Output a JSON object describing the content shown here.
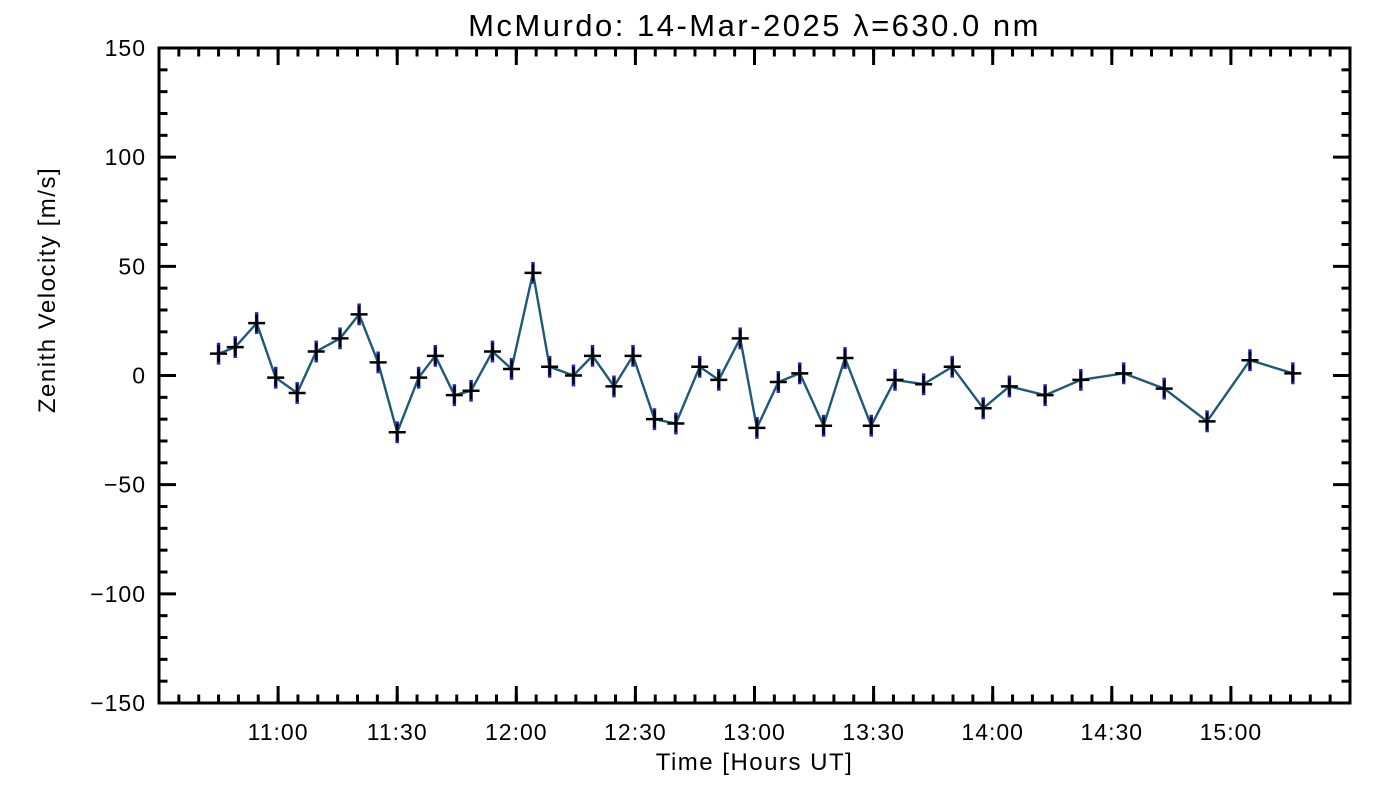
{
  "chart_data": {
    "type": "line",
    "title": "McMurdo: 14-Mar-2025 λ=630.0 nm",
    "xlabel": "Time [Hours UT]",
    "ylabel": "Zenith Velocity [m/s]",
    "xlim": [
      10.5,
      15.5
    ],
    "ylim": [
      -150,
      150
    ],
    "grid": false,
    "legend": "none",
    "marker": "plus",
    "x_ticks": [
      {
        "value": 11.0,
        "label": "11:00"
      },
      {
        "value": 11.5,
        "label": "11:30"
      },
      {
        "value": 12.0,
        "label": "12:00"
      },
      {
        "value": 12.5,
        "label": "12:30"
      },
      {
        "value": 13.0,
        "label": "13:00"
      },
      {
        "value": 13.5,
        "label": "13:30"
      },
      {
        "value": 14.0,
        "label": "14:00"
      },
      {
        "value": 14.5,
        "label": "14:30"
      },
      {
        "value": 15.0,
        "label": "15:00"
      }
    ],
    "x_minor_tick_step_hours": 0.0833333,
    "y_ticks": [
      {
        "value": 150,
        "label": "150"
      },
      {
        "value": 100,
        "label": "100"
      },
      {
        "value": 50,
        "label": "50"
      },
      {
        "value": 0,
        "label": "0"
      },
      {
        "value": -50,
        "label": "−50"
      },
      {
        "value": -100,
        "label": "−100"
      },
      {
        "value": -150,
        "label": "−150"
      }
    ],
    "y_minor_tick_step": 10,
    "series": [
      {
        "name": "zenith-velocity",
        "x": [
          10.75,
          10.82,
          10.91,
          10.99,
          11.08,
          11.16,
          11.26,
          11.34,
          11.42,
          11.5,
          11.59,
          11.66,
          11.74,
          11.81,
          11.9,
          11.98,
          12.07,
          12.14,
          12.24,
          12.32,
          12.41,
          12.49,
          12.58,
          12.67,
          12.77,
          12.85,
          12.94,
          13.01,
          13.1,
          13.19,
          13.29,
          13.38,
          13.49,
          13.59,
          13.71,
          13.83,
          13.96,
          14.07,
          14.22,
          14.37,
          14.55,
          14.72,
          14.9,
          15.08,
          15.26
        ],
        "y": [
          10,
          13,
          24,
          -1,
          -8,
          11,
          17,
          28,
          6,
          -26,
          -1,
          9,
          -9,
          -7,
          11,
          3,
          47,
          4,
          0,
          9,
          -5,
          9,
          -20,
          -22,
          4,
          -2,
          17,
          -24,
          -3,
          1,
          -23,
          8,
          -23,
          -2,
          -4,
          4,
          -15,
          -5,
          -9,
          -2,
          1,
          -6,
          -21,
          7,
          1
        ],
        "yerr": 5
      }
    ],
    "colors": {
      "line": "#1e5978",
      "error_bar": "#2323cc",
      "marker": "#000000",
      "frame": "#000000",
      "text": "#000000",
      "background": "#ffffff"
    }
  }
}
